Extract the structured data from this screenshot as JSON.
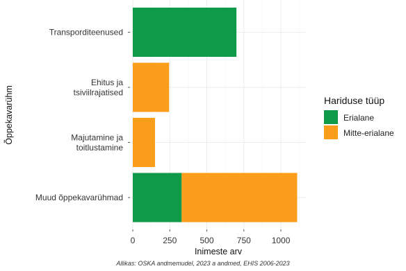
{
  "chart_data": {
    "type": "bar",
    "orientation": "horizontal",
    "stacked": true,
    "categories": [
      "Transporditeenused",
      "Ehitus ja tsiviilrajatised",
      "Majutamine ja toitlustamine",
      "Muud õppekavarühmad"
    ],
    "category_lines": [
      [
        "Transporditeenused"
      ],
      [
        "Ehitus ja",
        "tsiviilrajatised"
      ],
      [
        "Majutamine ja",
        "toitlustamine"
      ],
      [
        "Muud õppekavarühmad"
      ]
    ],
    "series": [
      {
        "name": "Erialane",
        "color": "#0f9a4a",
        "values": [
          700,
          0,
          0,
          330
        ]
      },
      {
        "name": "Mitte-erialane",
        "color": "#fb9e1c",
        "values": [
          0,
          245,
          150,
          780
        ]
      }
    ],
    "xlabel": "Inimeste arv",
    "ylabel": "Õppekavarühm",
    "xlim": [
      0,
      1150
    ],
    "xticks": [
      "0",
      "250",
      "500",
      "750",
      "1000"
    ],
    "xtick_values": [
      0,
      250,
      500,
      750,
      1000
    ],
    "legend_title": "Hariduse tüüp",
    "legend_position": "right",
    "grid": true,
    "caption": "Allikas: OSKA andmemudel, 2023 a andmed, EHIS 2006-2023"
  }
}
